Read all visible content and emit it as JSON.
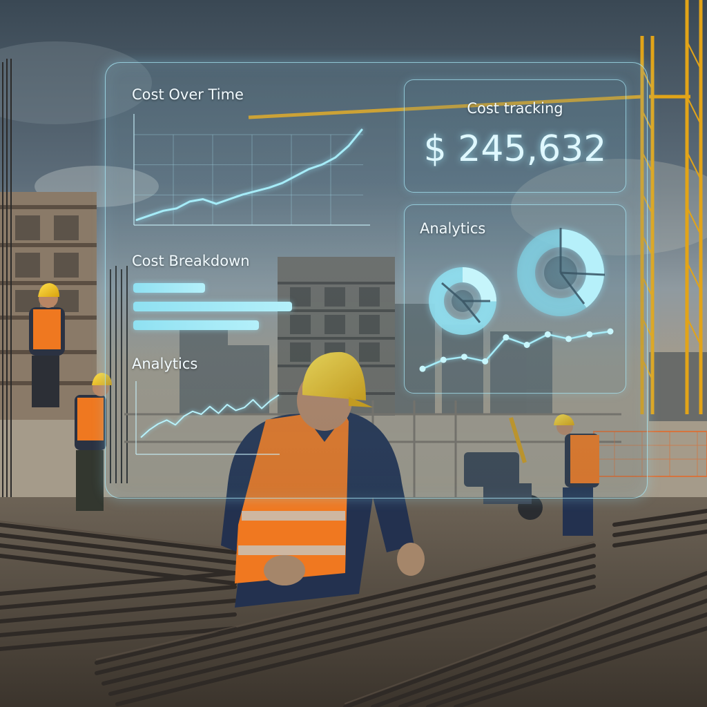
{
  "overlay": {
    "cost_over_time": {
      "title": "Cost Over Time",
      "line_values": [
        2,
        6,
        10,
        12,
        18,
        20,
        16,
        20,
        24,
        27,
        30,
        34,
        40,
        46,
        50,
        56,
        66,
        80
      ]
    },
    "cost_breakdown": {
      "title": "Cost Breakdown",
      "bars": [
        0.45,
        1.0,
        0.79
      ]
    },
    "analytics_left": {
      "title": "Analytics",
      "line_values": [
        6,
        14,
        20,
        24,
        19,
        28,
        33,
        30,
        38,
        31,
        40,
        34,
        37,
        45,
        36,
        44,
        50
      ]
    },
    "cost_tracking": {
      "title": "Cost tracking",
      "amount": "$ 245,632"
    },
    "analytics_right": {
      "title": "Analytics",
      "line_values": [
        10,
        22,
        26,
        20,
        52,
        42,
        56,
        50,
        56,
        60
      ]
    },
    "colors": {
      "accent": "#9ee6f5",
      "panel_border": "#aaebfa",
      "text": "#f2fbff"
    }
  },
  "background": {
    "description_icons": [
      "construction-site-scene",
      "tower-crane",
      "worker-hardhat",
      "rebar-bundle"
    ],
    "colors": {
      "sky": "#4d5d6b",
      "hardhat": "#f0c419",
      "vest": "#f07820",
      "rebar": "#3b3632"
    }
  }
}
